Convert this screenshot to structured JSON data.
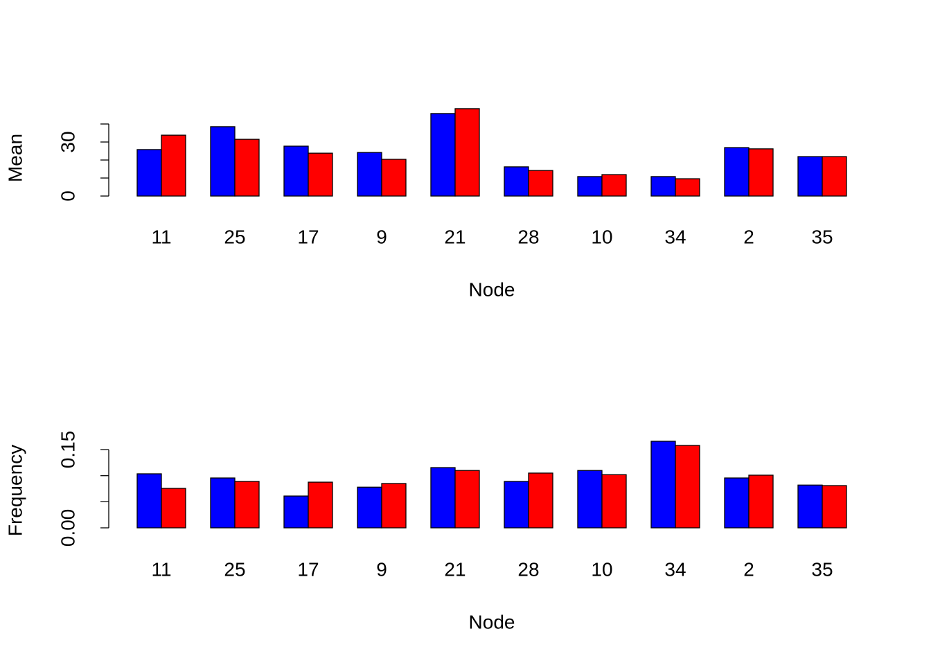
{
  "chart_data": [
    {
      "type": "bar",
      "ylabel": "Mean",
      "xlabel": "Node",
      "categories": [
        "11",
        "25",
        "17",
        "9",
        "21",
        "28",
        "10",
        "34",
        "2",
        "35"
      ],
      "series": [
        {
          "color": "#0000ff",
          "values": [
            25.8,
            38.5,
            27.7,
            24.2,
            45.8,
            16.2,
            10.8,
            10.8,
            26.9,
            21.9
          ]
        },
        {
          "color": "#ff0000",
          "values": [
            33.8,
            31.5,
            23.8,
            20.4,
            48.5,
            14.2,
            11.9,
            9.6,
            26.2,
            21.9
          ]
        }
      ],
      "ylim": [
        0,
        50
      ],
      "yticks": [
        0,
        {
          "value": 10,
          "label": null
        },
        {
          "value": 20,
          "label": null
        },
        30,
        {
          "value": 40,
          "label": null
        }
      ]
    },
    {
      "type": "bar",
      "ylabel": "Frequency",
      "xlabel": "Node",
      "categories": [
        "11",
        "25",
        "17",
        "9",
        "21",
        "28",
        "10",
        "34",
        "2",
        "35"
      ],
      "series": [
        {
          "color": "#0000ff",
          "values": [
            0.1036,
            0.0956,
            0.061,
            0.078,
            0.1155,
            0.089,
            0.11,
            0.166,
            0.0956,
            0.082
          ]
        },
        {
          "color": "#ff0000",
          "values": [
            0.0757,
            0.089,
            0.0876,
            0.085,
            0.11,
            0.105,
            0.102,
            0.158,
            0.101,
            0.081
          ]
        }
      ],
      "ylim": [
        0,
        0.17
      ],
      "yticks": [
        {
          "value": 0,
          "label": "0.00"
        },
        {
          "value": 0.05,
          "label": null
        },
        {
          "value": 0.1,
          "label": null
        },
        {
          "value": 0.15,
          "label": "0.15"
        }
      ]
    }
  ]
}
